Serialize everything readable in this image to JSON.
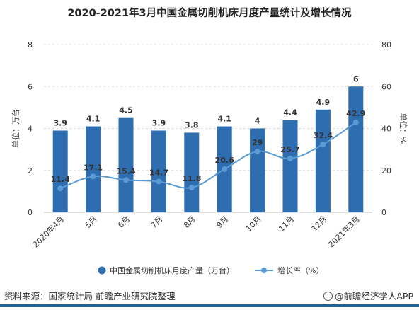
{
  "title": "2020-2021年3月中国金属切削机床月度产量统计及增长情况",
  "source_text": "资料来源：国家统计局 前瞻产业研究院整理",
  "watermark_text": "@前瞻经济学人APP",
  "colors": {
    "bar": "#2e6eb0",
    "line": "#5b9bd5",
    "grid": "#d9d9d9",
    "axis": "#bfbfbf",
    "text": "#333333"
  },
  "chart_data": {
    "type": "bar",
    "categories": [
      "2020年4月",
      "5月",
      "6月",
      "7月",
      "8月",
      "9月",
      "10月",
      "11月",
      "12月",
      "2021年3月"
    ],
    "series": [
      {
        "name": "中国金属切削机床月度产量（万台）",
        "type": "bar",
        "axis": "left",
        "values": [
          3.9,
          4.1,
          4.5,
          3.9,
          3.8,
          4.1,
          4,
          4.4,
          4.9,
          6
        ],
        "labels": [
          "3.9",
          "4.1",
          "4.5",
          "3.9",
          "3.8",
          "4.1",
          "4",
          "4.4",
          "4.9",
          "6"
        ]
      },
      {
        "name": "增长率（%）",
        "type": "line",
        "axis": "right",
        "values": [
          11.4,
          17.1,
          15.4,
          14.7,
          11.8,
          20.6,
          29,
          25.7,
          32.4,
          42.9
        ],
        "labels": [
          "11.4",
          "17.1",
          "15.4",
          "14.7",
          "11.8",
          "20.6",
          "29",
          "25.7",
          "32.4",
          "42.9"
        ]
      }
    ],
    "y_left": {
      "label": "单位：万台",
      "range": [
        0,
        8
      ],
      "ticks": [
        "0",
        "2",
        "4",
        "6",
        "8"
      ]
    },
    "y_right": {
      "label": "单位：%",
      "range": [
        0,
        80
      ],
      "ticks": [
        "0",
        "20",
        "40",
        "60",
        "80"
      ]
    },
    "grid": true,
    "legend_position": "bottom"
  }
}
